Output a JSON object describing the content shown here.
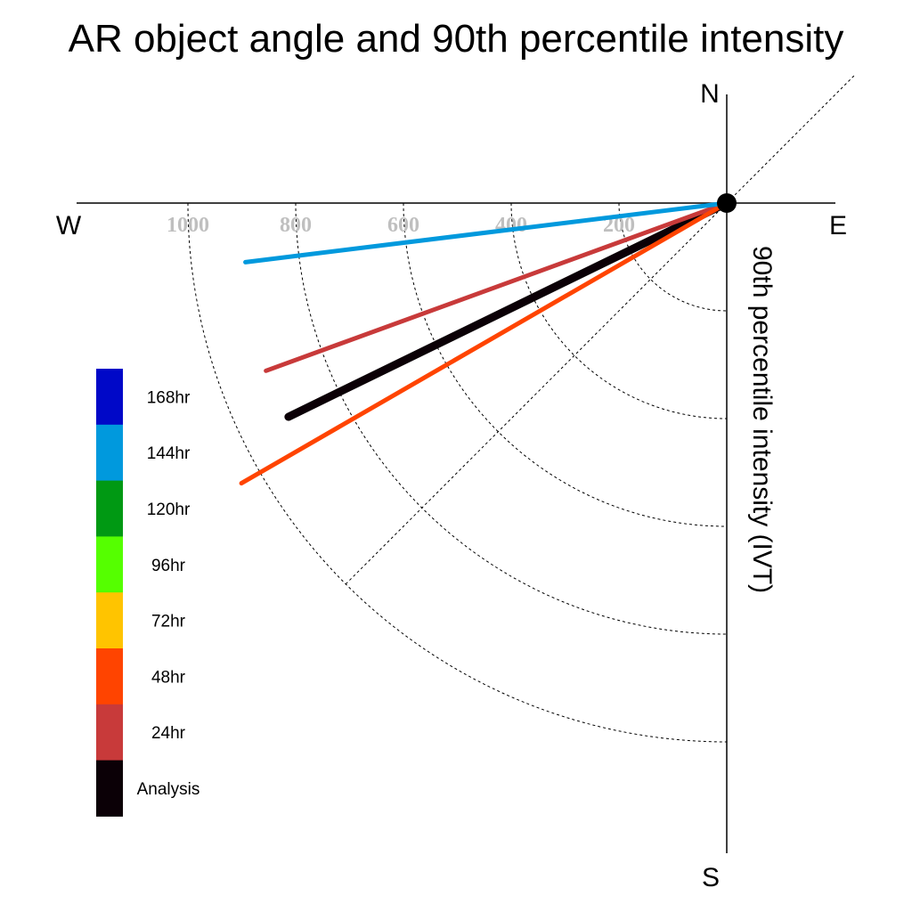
{
  "chart_data": {
    "type": "polar-vector",
    "title": "AR object angle and 90th percentile intensity",
    "ylabel": "90th percentile intensity (IVT)",
    "compass": {
      "north": "N",
      "south": "S",
      "east": "E",
      "west": "W"
    },
    "radial_ticks": [
      "200",
      "400",
      "600",
      "800",
      "1000"
    ],
    "radial_tick_values": [
      200,
      400,
      600,
      800,
      1000
    ],
    "rlim": [
      0,
      1200
    ],
    "grid": true,
    "angle_reference_deg": [
      45,
      225
    ],
    "series": [
      {
        "name": "Analysis",
        "bearing_deg": 244,
        "intensity": 905,
        "color": "#0b0006",
        "width": 9
      },
      {
        "name": "24hr",
        "bearing_deg": 250,
        "intensity": 910,
        "color": "#c83a3a",
        "width": 5
      },
      {
        "name": "48hr",
        "bearing_deg": 240,
        "intensity": 1040,
        "color": "#ff4400",
        "width": 5
      },
      {
        "name": "144hr",
        "bearing_deg": 263,
        "intensity": 900,
        "color": "#0099dd",
        "width": 5
      }
    ],
    "legend": {
      "position": "left",
      "items": [
        {
          "label": "168hr",
          "color": "#0008c8"
        },
        {
          "label": "144hr",
          "color": "#0099dd"
        },
        {
          "label": "120hr",
          "color": "#009913"
        },
        {
          "label": "96hr",
          "color": "#55ff00"
        },
        {
          "label": "72hr",
          "color": "#ffc400"
        },
        {
          "label": "48hr",
          "color": "#ff4400"
        },
        {
          "label": "24hr",
          "color": "#c83a3a"
        },
        {
          "label": "Analysis",
          "color": "#0b0006"
        }
      ]
    }
  }
}
